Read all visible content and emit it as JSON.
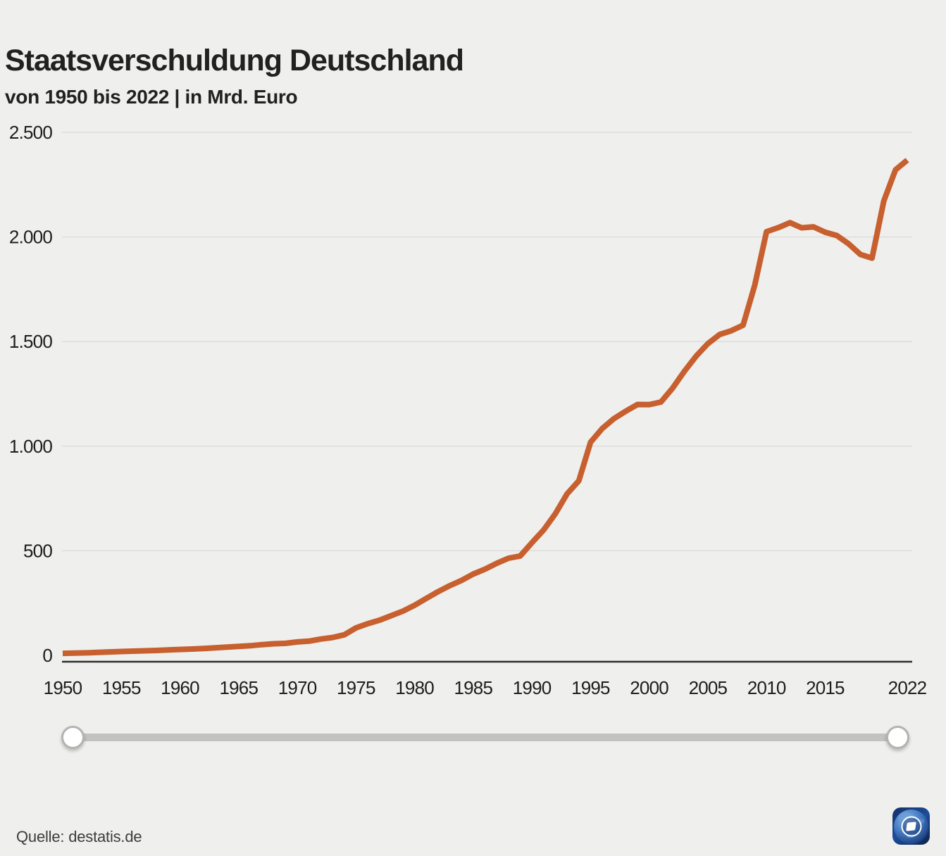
{
  "header": {
    "title": "Staatsverschuldung Deutschland",
    "subtitle": "von 1950 bis 2022 | in Mrd. Euro"
  },
  "source": {
    "label": "Quelle: destatis.de"
  },
  "logo": {
    "name": "tagesschau-logo"
  },
  "slider": {
    "range_start_year": "1950",
    "range_end_year": "2022"
  },
  "colors": {
    "accent_line": "#c75f2e",
    "background": "#efefed",
    "gridline": "#dedddb",
    "axis": "#2f2f2d",
    "text": "#1d1d1b",
    "slider_track": "#c2c2c0",
    "logo_blue": "#1d4d9b"
  },
  "chart_data": {
    "type": "line",
    "title": "Staatsverschuldung Deutschland",
    "subtitle": "von 1950 bis 2022 | in Mrd. Euro",
    "series_name": "Staatsverschuldung",
    "unit": "Mrd. Euro",
    "grid": "horizontal",
    "legend": "none",
    "ylim": [
      0,
      2500
    ],
    "y_ticks": [
      0,
      500,
      1000,
      1500,
      2000,
      2500
    ],
    "y_tick_labels": [
      "0",
      "500",
      "1.000",
      "1.500",
      "2.000",
      "2.500"
    ],
    "x_ticks": [
      1950,
      1955,
      1960,
      1965,
      1970,
      1975,
      1980,
      1985,
      1990,
      1995,
      2000,
      2005,
      2010,
      2015,
      2022
    ],
    "x_tick_labels": [
      "1950",
      "1955",
      "1960",
      "1965",
      "1970",
      "1975",
      "1980",
      "1985",
      "1990",
      "1995",
      "2000",
      "2005",
      "2010",
      "2015",
      "2022"
    ],
    "x": [
      1950,
      1951,
      1952,
      1953,
      1954,
      1955,
      1956,
      1957,
      1958,
      1959,
      1960,
      1961,
      1962,
      1963,
      1964,
      1965,
      1966,
      1967,
      1968,
      1969,
      1970,
      1971,
      1972,
      1973,
      1974,
      1975,
      1976,
      1977,
      1978,
      1979,
      1980,
      1981,
      1982,
      1983,
      1984,
      1985,
      1986,
      1987,
      1988,
      1989,
      1990,
      1991,
      1992,
      1993,
      1994,
      1995,
      1996,
      1997,
      1998,
      1999,
      2000,
      2001,
      2002,
      2003,
      2004,
      2005,
      2006,
      2007,
      2008,
      2009,
      2010,
      2011,
      2012,
      2013,
      2014,
      2015,
      2016,
      2017,
      2018,
      2019,
      2020,
      2021,
      2022
    ],
    "values": [
      9.6,
      10.8,
      12.2,
      14.3,
      16.6,
      18.5,
      20.2,
      21.8,
      23.6,
      26.0,
      28.2,
      30.3,
      32.8,
      35.9,
      39.2,
      42.9,
      46.1,
      51.4,
      55.6,
      57.7,
      64.1,
      67.8,
      78.2,
      85.4,
      98.4,
      131.1,
      151.3,
      168.0,
      189.7,
      211.2,
      239.6,
      272.3,
      304.4,
      333.0,
      358.5,
      388.5,
      412.0,
      440.0,
      464.4,
      475.0,
      538.3,
      599.6,
      677.0,
      772.2,
      834.2,
      1018.7,
      1084.3,
      1132.0,
      1166.9,
      1199.3,
      1198.4,
      1210.9,
      1277.6,
      1358.1,
      1430.3,
      1489.9,
      1533.7,
      1551.9,
      1578.2,
      1769.6,
      2025.4,
      2044.5,
      2068.3,
      2043.9,
      2048.1,
      2022.6,
      2006.6,
      1967.2,
      1916.6,
      1898.8,
      2171.8,
      2320.8,
      2367.3
    ]
  }
}
